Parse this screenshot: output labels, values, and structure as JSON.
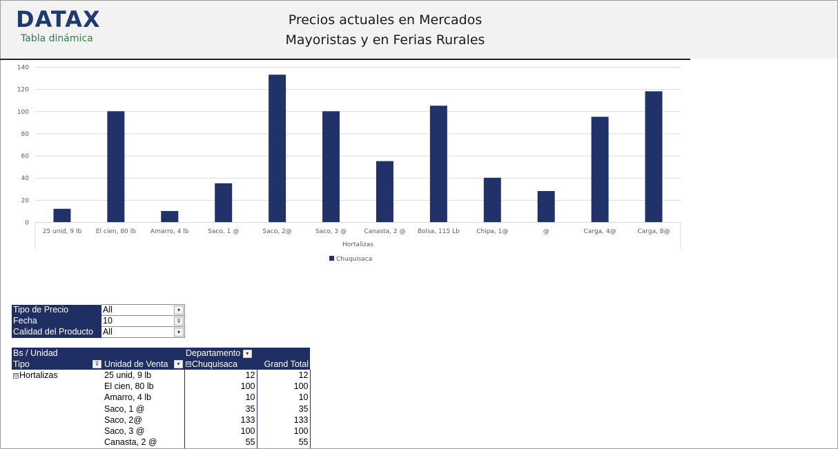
{
  "header": {
    "logo": "DATAX",
    "subtitle": "Tabla dinámica",
    "title_line1": "Precios actuales en Mercados",
    "title_line2": "Mayoristas y en Ferias Rurales"
  },
  "chart_data": {
    "type": "bar",
    "title": "",
    "xlabel": "Hortalizas",
    "ylabel": "",
    "ylim": [
      0,
      140
    ],
    "yticks": [
      0,
      20,
      40,
      60,
      80,
      100,
      120,
      140
    ],
    "grid": true,
    "legend_position": "bottom",
    "categories": [
      "25 unid, 9 lb",
      "El cien, 80 lb",
      "Amarro, 4 lb",
      "Saco, 1 @",
      "Saco, 2@",
      "Saco, 3 @",
      "Canasta, 2 @",
      "Bolsa, 115 Lb",
      "Chipa, 1@",
      "@",
      "Carga, 4@",
      "Carga, 8@"
    ],
    "series": [
      {
        "name": "Chuquisaca",
        "color": "#213169",
        "values": [
          12,
          100,
          10,
          35,
          133,
          100,
          55,
          105,
          40,
          28,
          95,
          118
        ]
      }
    ]
  },
  "filters": [
    {
      "label": "Tipo de Precio",
      "value": "All",
      "button": "▾"
    },
    {
      "label": "Fecha",
      "value": "10",
      "button": "⊽"
    },
    {
      "label": "Calidad del Producto",
      "value": "All",
      "button": "▾"
    }
  ],
  "pivot": {
    "corner": "Bs / Unidad",
    "col_field": "Departamento",
    "row_field_1": "Tipo",
    "row_field_2": "Unidad de Venta",
    "col_value": "Chuquisaca",
    "grand_total": "Grand Total",
    "group": "Hortalizas",
    "rows": [
      {
        "unidad": "25 unid, 9 lb",
        "chuquisaca": "12",
        "total": "12"
      },
      {
        "unidad": "El cien, 80 lb",
        "chuquisaca": "100",
        "total": "100"
      },
      {
        "unidad": "Amarro, 4 lb",
        "chuquisaca": "10",
        "total": "10"
      },
      {
        "unidad": "Saco, 1 @",
        "chuquisaca": "35",
        "total": "35"
      },
      {
        "unidad": "Saco, 2@",
        "chuquisaca": "133",
        "total": "133"
      },
      {
        "unidad": "Saco, 3 @",
        "chuquisaca": "100",
        "total": "100"
      },
      {
        "unidad": "Canasta, 2 @",
        "chuquisaca": "55",
        "total": "55"
      }
    ]
  },
  "colors": {
    "accent": "#1f2f63",
    "bar": "#213169",
    "logo": "#1f3a6e",
    "subtitle": "#2f7a4a"
  }
}
